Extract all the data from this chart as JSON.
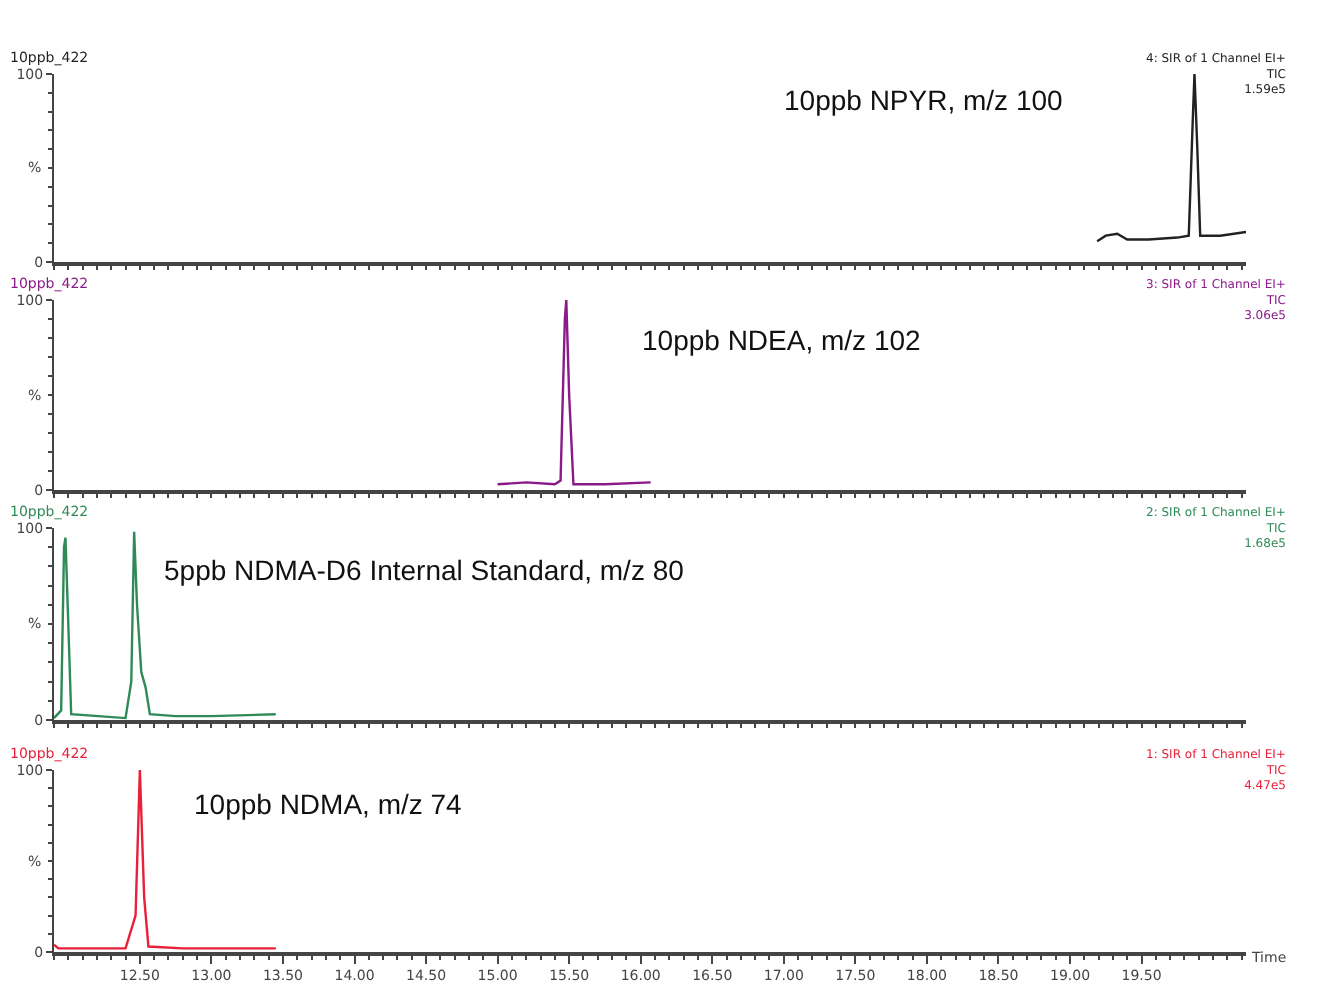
{
  "chart_data": [
    {
      "type": "line",
      "title": "10ppb_422",
      "ylabel": "%",
      "color": "#222222",
      "tick_labels": "y",
      "x": [
        19.19,
        19.25,
        19.33,
        19.4,
        19.55,
        19.75,
        19.83,
        19.86,
        19.87,
        19.89,
        19.91,
        20.05,
        20.23
      ],
      "values": [
        11,
        14,
        15,
        12,
        12,
        13,
        14,
        80,
        100,
        60,
        14,
        14,
        16
      ],
      "xlim": [
        11.9,
        20.23
      ],
      "xticks": [
        {
          "value": 12.5,
          "label": null
        },
        {
          "value": 13,
          "label": null
        },
        {
          "value": 13.5,
          "label": null
        },
        {
          "value": 14,
          "label": null
        },
        {
          "value": 14.5,
          "label": null
        },
        {
          "value": 15,
          "label": null
        },
        {
          "value": 15.5,
          "label": null
        },
        {
          "value": 16,
          "label": null
        },
        {
          "value": 16.5,
          "label": null
        },
        {
          "value": 17,
          "label": null
        },
        {
          "value": 17.5,
          "label": null
        },
        {
          "value": 18,
          "label": null
        },
        {
          "value": 18.5,
          "label": null
        },
        {
          "value": 19,
          "label": null
        },
        {
          "value": 19.5,
          "label": null
        }
      ],
      "ylim": [
        0,
        100
      ],
      "yticks": [
        0,
        100
      ],
      "annotations": [
        "10ppb NPYR, m/z 100",
        "4: SIR of 1 Channel EI+",
        "TIC",
        "1.59e5"
      ]
    },
    {
      "type": "line",
      "title": "10ppb_422",
      "ylabel": "%",
      "color": "#8b1a89",
      "tick_labels": "y",
      "x": [
        15.0,
        15.2,
        15.4,
        15.44,
        15.47,
        15.48,
        15.5,
        15.53,
        15.75,
        16.07
      ],
      "values": [
        3,
        4,
        3,
        5,
        90,
        100,
        50,
        3,
        3,
        4
      ],
      "xlim": [
        11.9,
        20.23
      ],
      "xticks": [
        {
          "value": 12.5,
          "label": null
        },
        {
          "value": 13,
          "label": null
        },
        {
          "value": 13.5,
          "label": null
        },
        {
          "value": 14,
          "label": null
        },
        {
          "value": 14.5,
          "label": null
        },
        {
          "value": 15,
          "label": null
        },
        {
          "value": 15.5,
          "label": null
        },
        {
          "value": 16,
          "label": null
        },
        {
          "value": 16.5,
          "label": null
        },
        {
          "value": 17,
          "label": null
        },
        {
          "value": 17.5,
          "label": null
        },
        {
          "value": 18,
          "label": null
        },
        {
          "value": 18.5,
          "label": null
        },
        {
          "value": 19,
          "label": null
        },
        {
          "value": 19.5,
          "label": null
        }
      ],
      "ylim": [
        0,
        100
      ],
      "yticks": [
        0,
        100
      ],
      "annotations": [
        "10ppb NDEA, m/z 102",
        "3: SIR of 1 Channel EI+",
        "TIC",
        "3.06e5"
      ]
    },
    {
      "type": "line",
      "title": "10ppb_422",
      "ylabel": "%",
      "color": "#2e8b57",
      "tick_labels": "y",
      "x": [
        11.9,
        11.95,
        11.97,
        11.98,
        12.0,
        12.02,
        12.4,
        12.44,
        12.46,
        12.48,
        12.51,
        12.54,
        12.57,
        12.75,
        13.0,
        13.45
      ],
      "values": [
        1,
        5,
        90,
        95,
        50,
        3,
        1,
        20,
        98,
        60,
        25,
        17,
        3,
        2,
        2,
        3
      ],
      "xlim": [
        11.9,
        20.23
      ],
      "xticks": [
        {
          "value": 12.5,
          "label": null
        },
        {
          "value": 13,
          "label": null
        },
        {
          "value": 13.5,
          "label": null
        },
        {
          "value": 14,
          "label": null
        },
        {
          "value": 14.5,
          "label": null
        },
        {
          "value": 15,
          "label": null
        },
        {
          "value": 15.5,
          "label": null
        },
        {
          "value": 16,
          "label": null
        },
        {
          "value": 16.5,
          "label": null
        },
        {
          "value": 17,
          "label": null
        },
        {
          "value": 17.5,
          "label": null
        },
        {
          "value": 18,
          "label": null
        },
        {
          "value": 18.5,
          "label": null
        },
        {
          "value": 19,
          "label": null
        },
        {
          "value": 19.5,
          "label": null
        }
      ],
      "ylim": [
        0,
        100
      ],
      "yticks": [
        0,
        100
      ],
      "annotations": [
        "5ppb NDMA-D6 Internal Standard, m/z 80",
        "2: SIR of 1 Channel EI+",
        "TIC",
        "1.68e5"
      ]
    },
    {
      "type": "line",
      "title": "10ppb_422",
      "ylabel": "%",
      "color": "#e8203a",
      "xlabel": "Time",
      "x": [
        11.9,
        11.93,
        12.4,
        12.47,
        12.5,
        12.53,
        12.56,
        12.8,
        13.45
      ],
      "values": [
        4,
        2,
        2,
        20,
        100,
        30,
        3,
        2,
        2
      ],
      "xlim": [
        11.9,
        20.23
      ],
      "xticks": [
        {
          "value": 12.5,
          "label": "12.50"
        },
        {
          "value": 13,
          "label": "13.00"
        },
        {
          "value": 13.5,
          "label": "13.50"
        },
        {
          "value": 14,
          "label": "14.00"
        },
        {
          "value": 14.5,
          "label": "14.50"
        },
        {
          "value": 15,
          "label": "15.00"
        },
        {
          "value": 15.5,
          "label": "15.50"
        },
        {
          "value": 16,
          "label": "16.00"
        },
        {
          "value": 16.5,
          "label": "16.50"
        },
        {
          "value": 17,
          "label": "17.00"
        },
        {
          "value": 17.5,
          "label": "17.50"
        },
        {
          "value": 18,
          "label": "18.00"
        },
        {
          "value": 18.5,
          "label": "18.50"
        },
        {
          "value": 19,
          "label": "19.00"
        },
        {
          "value": 19.5,
          "label": "19.50"
        }
      ],
      "ylim": [
        0,
        100
      ],
      "yticks": [
        0,
        100
      ],
      "annotations": [
        "10ppb NDMA, m/z 74",
        "1: SIR of 1 Channel EI+",
        "TIC",
        "4.47e5"
      ]
    }
  ]
}
